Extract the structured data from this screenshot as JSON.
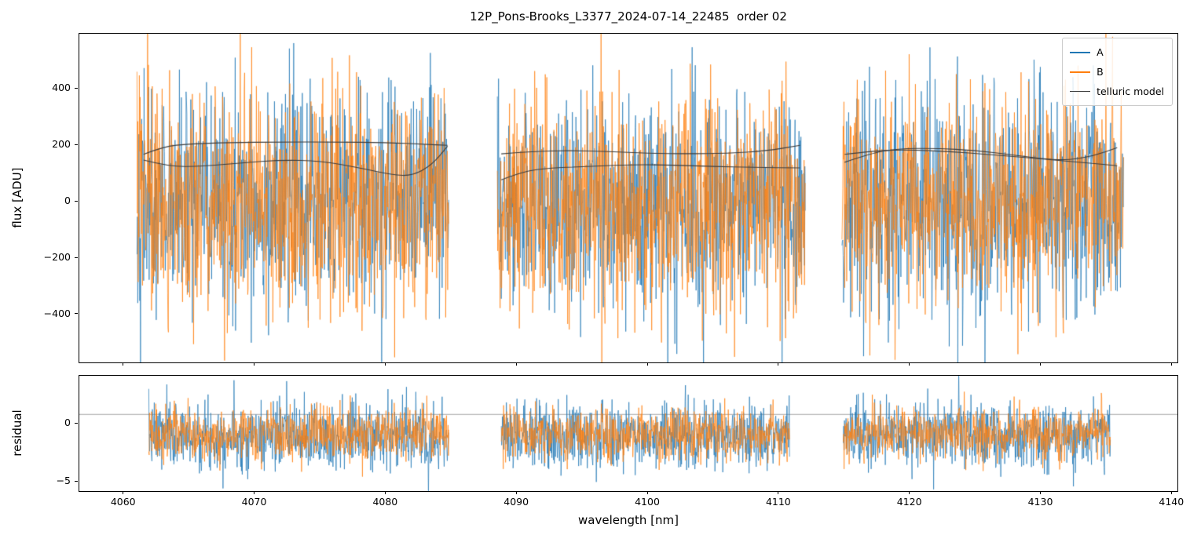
{
  "title": "12P_Pons-Brooks_L3377_2024-07-14_22485  order 02",
  "axes": {
    "x": {
      "label": "wavelength [nm]",
      "ticks": [
        4060,
        4070,
        4080,
        4090,
        4100,
        4110,
        4120,
        4130,
        4140
      ],
      "lim": [
        4056.6,
        4140.4
      ]
    },
    "flux": {
      "label": "flux [ADU]",
      "ticks": [
        -400,
        -200,
        0,
        200,
        400
      ],
      "lim": [
        -570,
        596
      ]
    },
    "residual": {
      "label": "residual",
      "ticks": [
        0,
        -5
      ],
      "lim": [
        -5.8,
        4.13
      ]
    }
  },
  "legend": {
    "position": "upper right",
    "entries": [
      {
        "label": "A",
        "color": "#1f77b4"
      },
      {
        "label": "B",
        "color": "#ff7f0e"
      },
      {
        "label": "telluric model",
        "color": "#3d3d3d"
      }
    ]
  },
  "chart_data": [
    {
      "type": "line",
      "title": "12P_Pons-Brooks_L3377_2024-07-14_22485  order 02",
      "xlabel": "wavelength [nm]",
      "ylabel": "flux [ADU]",
      "xlim": [
        4056.6,
        4140.4
      ],
      "ylim": [
        -570,
        596
      ],
      "grid": false,
      "legend_position": "upper right",
      "segments_nm": [
        [
          4061.0,
          4084.8
        ],
        [
          4088.5,
          4112.0
        ],
        [
          4114.8,
          4136.3
        ]
      ],
      "series": [
        {
          "name": "A",
          "color": "#1f77b4",
          "kind": "noise",
          "mean": 0,
          "sigma": 195
        },
        {
          "name": "B",
          "color": "#ff7f0e",
          "kind": "noise",
          "mean": 0,
          "sigma": 195
        },
        {
          "name": "telluric model",
          "color": "#3d3d3d",
          "kind": "curves",
          "curves": [
            [
              [
                4061.5,
                168
              ],
              [
                4063.0,
                196
              ],
              [
                4065.0,
                205
              ],
              [
                4068.0,
                210
              ],
              [
                4072.0,
                212
              ],
              [
                4076.0,
                212
              ],
              [
                4080.0,
                210
              ],
              [
                4083.0,
                204
              ],
              [
                4084.7,
                200
              ]
            ],
            [
              [
                4061.5,
                148
              ],
              [
                4063.5,
                124
              ],
              [
                4066.0,
                126
              ],
              [
                4069.0,
                138
              ],
              [
                4072.0,
                148
              ],
              [
                4075.0,
                145
              ],
              [
                4078.0,
                120
              ],
              [
                4080.5,
                95
              ],
              [
                4082.0,
                92
              ],
              [
                4083.5,
                130
              ],
              [
                4084.7,
                197
              ]
            ],
            [
              [
                4088.8,
                170
              ],
              [
                4091.0,
                178
              ],
              [
                4094.0,
                182
              ],
              [
                4097.0,
                178
              ],
              [
                4100.0,
                172
              ],
              [
                4103.0,
                170
              ],
              [
                4106.0,
                172
              ],
              [
                4109.0,
                180
              ],
              [
                4111.6,
                200
              ]
            ],
            [
              [
                4088.8,
                78
              ],
              [
                4090.5,
                108
              ],
              [
                4092.5,
                120
              ],
              [
                4096.0,
                126
              ],
              [
                4099.0,
                132
              ],
              [
                4102.0,
                130
              ],
              [
                4105.0,
                125
              ],
              [
                4108.0,
                122
              ],
              [
                4111.6,
                120
              ]
            ],
            [
              [
                4115.0,
                140
              ],
              [
                4117.0,
                172
              ],
              [
                4119.0,
                188
              ],
              [
                4122.0,
                190
              ],
              [
                4125.0,
                182
              ],
              [
                4128.0,
                165
              ],
              [
                4130.5,
                150
              ],
              [
                4132.0,
                148
              ],
              [
                4134.0,
                162
              ],
              [
                4135.8,
                192
              ]
            ],
            [
              [
                4115.0,
                168
              ],
              [
                4117.5,
                182
              ],
              [
                4120.0,
                184
              ],
              [
                4123.0,
                178
              ],
              [
                4126.0,
                168
              ],
              [
                4129.0,
                156
              ],
              [
                4131.0,
                148
              ],
              [
                4133.0,
                140
              ],
              [
                4135.8,
                128
              ]
            ]
          ]
        }
      ]
    },
    {
      "type": "line",
      "title": "",
      "xlabel": "wavelength [nm]",
      "ylabel": "residual",
      "xlim": [
        4056.6,
        4140.4
      ],
      "ylim": [
        -5.8,
        4.13
      ],
      "grid": false,
      "hline_y": 0.8,
      "segments_nm": [
        [
          4061.9,
          4084.8
        ],
        [
          4088.8,
          4110.8
        ],
        [
          4114.9,
          4135.3
        ]
      ],
      "series": [
        {
          "name": "A",
          "color": "#1f77b4",
          "kind": "noise",
          "mean": -1.0,
          "sigma": 1.45
        },
        {
          "name": "B",
          "color": "#ff7f0e",
          "kind": "noise",
          "mean": -0.85,
          "sigma": 1.1
        }
      ]
    }
  ]
}
